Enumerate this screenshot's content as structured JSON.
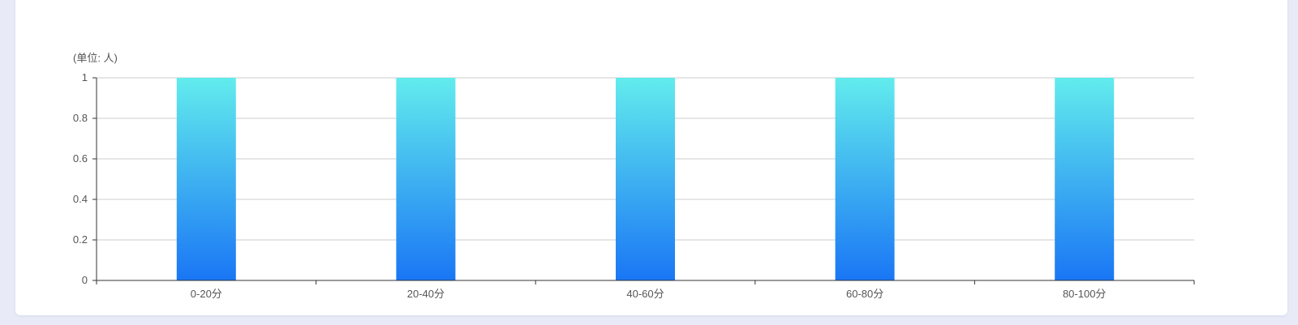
{
  "unit_label": "(单位: 人)",
  "colors": {
    "bar_top": "#62eced",
    "bar_bottom": "#1a76f5",
    "grid": "#cccccc",
    "axis": "#333333",
    "text": "#555555"
  },
  "chart_data": {
    "type": "bar",
    "ylabel": "(单位: 人)",
    "categories": [
      "0-20分",
      "20-40分",
      "40-60分",
      "60-80分",
      "80-100分"
    ],
    "values": [
      1,
      1,
      1,
      1,
      1
    ],
    "ylim": [
      0,
      1
    ],
    "yticks": [
      "0",
      "0.2",
      "0.4",
      "0.6",
      "0.8",
      "1"
    ],
    "grid": true
  }
}
